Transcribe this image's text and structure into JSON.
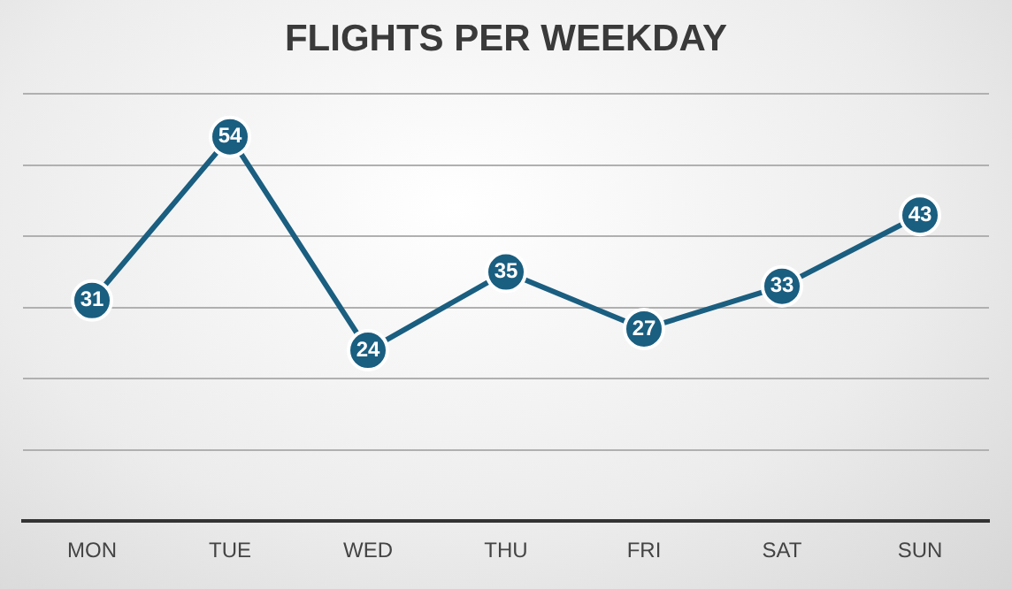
{
  "chart_data": {
    "type": "line",
    "title": "FLIGHTS PER WEEKDAY",
    "categories": [
      "MON",
      "TUE",
      "WED",
      "THU",
      "FRI",
      "SAT",
      "SUN"
    ],
    "series": [
      {
        "color": "#1a5e80",
        "values": [
          31,
          54,
          24,
          35,
          27,
          33,
          43
        ]
      }
    ],
    "ylim": [
      0,
      60
    ],
    "yticks": [
      {
        "value": 0,
        "label": null
      },
      {
        "value": 10,
        "label": null
      },
      {
        "value": 20,
        "label": null
      },
      {
        "value": 30,
        "label": null
      },
      {
        "value": 40,
        "label": null
      },
      {
        "value": 50,
        "label": null
      },
      {
        "value": 60,
        "label": null
      }
    ],
    "tick_labels": "x",
    "grid": "y",
    "legend": false,
    "marker": "circle",
    "line_style": "solid",
    "data_labels": true
  }
}
